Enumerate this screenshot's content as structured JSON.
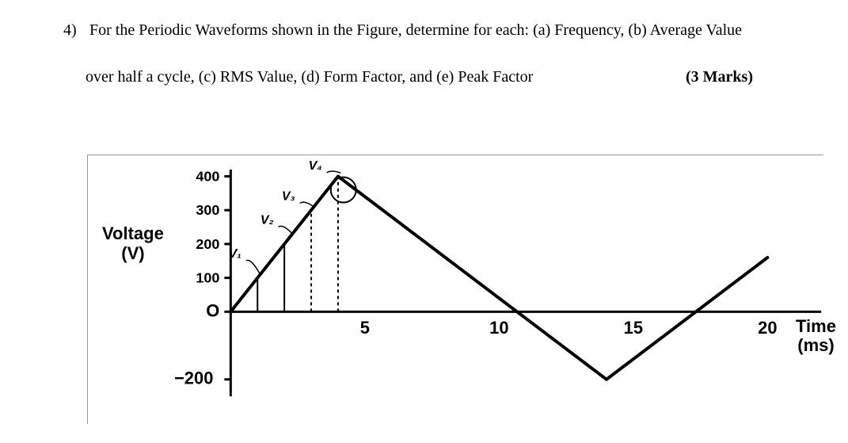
{
  "question": {
    "number": "4)",
    "line1": "For the Periodic Waveforms shown in the Figure, determine for each: (a) Frequency, (b) Average Value",
    "line2": "over half a cycle, (c) RMS Value, (d) Form Factor, and (e) Peak Factor",
    "marks": "(3 Marks)"
  },
  "chart": {
    "type": "waveform",
    "y_label_l1": "Voltage",
    "y_label_l2": "(V)",
    "x_label_l1": "Time",
    "x_label_l2": "(ms)",
    "y_ticks": [
      {
        "v": 400,
        "label": "400"
      },
      {
        "v": 300,
        "label": "300"
      },
      {
        "v": 200,
        "label": "200"
      },
      {
        "v": 100,
        "label": "100"
      },
      {
        "v": 0,
        "label": "O"
      },
      {
        "v": -200,
        "label": "−200"
      }
    ],
    "x_ticks": [
      {
        "t": 5,
        "label": "5"
      },
      {
        "t": 10,
        "label": "10"
      },
      {
        "t": 15,
        "label": "15"
      },
      {
        "t": 20,
        "label": "20"
      }
    ],
    "ylim": [
      -250,
      420
    ],
    "xlim": [
      0,
      22
    ],
    "stroke_color": "#000000",
    "stroke_width": 4,
    "background_color": "#ffffff",
    "points": [
      {
        "t": 0,
        "v": 0
      },
      {
        "t": 4,
        "v": 400
      },
      {
        "t": 14,
        "v": -200
      },
      {
        "t": 20,
        "v": 160
      }
    ],
    "segment_labels": [
      {
        "name": "V1",
        "text": "V₁",
        "t": 0.4,
        "v": 160
      },
      {
        "name": "V2",
        "text": "V₂",
        "t": 1.6,
        "v": 260
      },
      {
        "name": "V3",
        "text": "V₃",
        "t": 2.4,
        "v": 330
      },
      {
        "name": "V4",
        "text": "V₄",
        "t": 3.4,
        "v": 420
      }
    ],
    "vertical_strips": [
      {
        "t": 1,
        "style": "solid"
      },
      {
        "t": 2,
        "style": "solid"
      },
      {
        "t": 3,
        "style": "dash"
      },
      {
        "t": 4,
        "style": "dash"
      }
    ],
    "tick_fontsize": 18,
    "seg_fontsize": 16
  }
}
